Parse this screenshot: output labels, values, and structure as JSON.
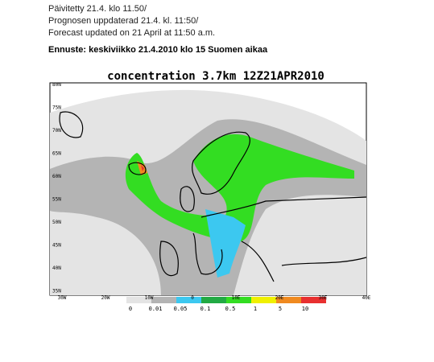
{
  "header": {
    "lines": [
      "Päivitetty 21.4. klo 11.50/",
      "Prognosen uppdaterad 21.4. kl. 11:50/",
      "Forecast updated on 21 April at 11:50 a.m."
    ],
    "forecast": "Ennuste: keskiviikko 21.4.2010 klo 15 Suomen aikaa"
  },
  "map": {
    "title": "concentration 3.7km 12Z21APR2010",
    "lat_labels": [
      "80N",
      "75N",
      "70N",
      "65N",
      "60N",
      "55N",
      "50N",
      "45N",
      "40N",
      "35N"
    ],
    "lon_labels": [
      "30W",
      "20W",
      "10W",
      "0",
      "10E",
      "20E",
      "30E",
      "40E"
    ],
    "legend": [
      {
        "label": "0",
        "color": "#e4e4e4"
      },
      {
        "label": "0.01",
        "color": "#b4b4b4"
      },
      {
        "label": "0.05",
        "color": "#3cc8f0"
      },
      {
        "label": "0.1",
        "color": "#22aa44"
      },
      {
        "label": "0.5",
        "color": "#33dd22"
      },
      {
        "label": "1",
        "color": "#f0f000"
      },
      {
        "label": "5",
        "color": "#f08a20"
      },
      {
        "label": "10",
        "color": "#e83030"
      }
    ]
  }
}
